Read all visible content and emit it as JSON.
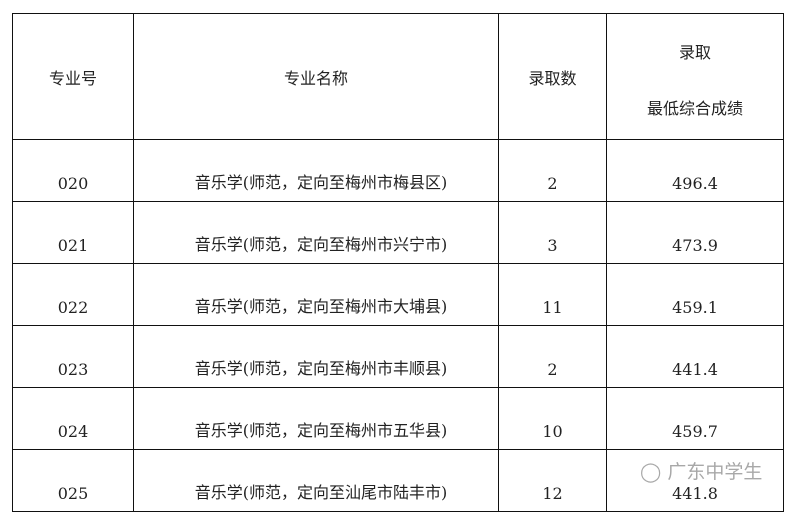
{
  "headers": {
    "code": "专业号",
    "name": "专业名称",
    "count": "录取数",
    "score_line1": "录取",
    "score_line2": "最低综合成绩"
  },
  "rows": [
    {
      "code": "020",
      "name": "音乐学(师范，定向至梅州市梅县区)",
      "count": "2",
      "score": "496.4"
    },
    {
      "code": "021",
      "name": "音乐学(师范，定向至梅州市兴宁市)",
      "count": "3",
      "score": "473.9"
    },
    {
      "code": "022",
      "name": "音乐学(师范，定向至梅州市大埔县)",
      "count": "11",
      "score": "459.1"
    },
    {
      "code": "023",
      "name": "音乐学(师范，定向至梅州市丰顺县)",
      "count": "2",
      "score": "441.4"
    },
    {
      "code": "024",
      "name": "音乐学(师范，定向至梅州市五华县)",
      "count": "10",
      "score": "459.7"
    },
    {
      "code": "025",
      "name": "音乐学(师范，定向至汕尾市陆丰市)",
      "count": "12",
      "score": "441.8"
    }
  ],
  "watermark": "广东中学生"
}
